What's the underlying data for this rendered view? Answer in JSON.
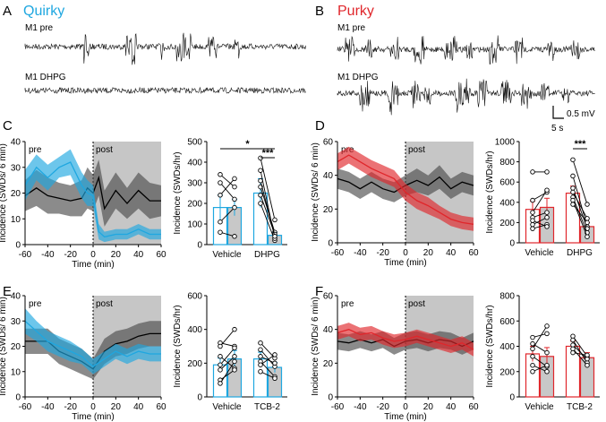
{
  "colors": {
    "quirky": "#1fa7e0",
    "purky": "#e0262b",
    "vehicle": "#1a1a1a",
    "grey_band": "#4d4d4d",
    "post_shade": "#c6c6c6",
    "bar_fill": "#c8c8c8",
    "trace": "#111111"
  },
  "panels": {
    "A": {
      "letter": "A",
      "strain": "Quirky",
      "trace_pre": "M1 pre",
      "trace_dhpg": "M1 DHPG"
    },
    "B": {
      "letter": "B",
      "strain": "Purky",
      "trace_pre": "M1 pre",
      "trace_dhpg": "M1 DHPG",
      "scale_mv": "0.5 mV",
      "scale_s": "5 s"
    }
  },
  "chart_data": [
    {
      "id": "C-time",
      "letter": "C",
      "type": "area",
      "color": "quirky",
      "pre_label": "pre",
      "post_label": "post",
      "xlabel": "Time (min)",
      "ylabel": "Incidence (SWDs/ 6 min)",
      "xlim": [
        -60,
        60
      ],
      "ylim": [
        0,
        40
      ],
      "xticks": [
        "-60",
        "-40",
        "-20",
        "0",
        "20",
        "40",
        "60"
      ],
      "yticks": [
        "0",
        "10",
        "20",
        "30",
        "40"
      ],
      "x": [
        -60,
        -50,
        -40,
        -30,
        -20,
        -10,
        -5,
        0,
        5,
        10,
        20,
        30,
        40,
        50,
        60
      ],
      "series": [
        {
          "name": "Vehicle",
          "mean": [
            19,
            22,
            19,
            18,
            17,
            18,
            22,
            20,
            26,
            14,
            21,
            16,
            21,
            17,
            17
          ],
          "sem": [
            6,
            7,
            7,
            6,
            6,
            7,
            8,
            7,
            7,
            7,
            7,
            6,
            7,
            7,
            6
          ]
        },
        {
          "name": "DHPG",
          "mean": [
            23,
            30,
            26,
            30,
            32,
            23,
            20,
            19,
            5,
            3,
            4,
            4,
            6,
            4,
            4
          ],
          "sem": [
            6,
            5,
            5,
            4,
            5,
            5,
            5,
            4,
            3,
            2,
            2,
            2,
            2,
            2,
            2
          ]
        }
      ]
    },
    {
      "id": "C-bar",
      "letter": "",
      "type": "bar",
      "color": "quirky",
      "ylabel": "Incidence (SWDs/hr)",
      "ylim": [
        0,
        500
      ],
      "yticks": [
        "0",
        "100",
        "200",
        "300",
        "400",
        "500"
      ],
      "groups": [
        "Vehicle",
        "DHPG"
      ],
      "pre": [
        180,
        250
      ],
      "post": [
        180,
        45
      ],
      "pre_err": [
        60,
        70
      ],
      "post_err": [
        40,
        15
      ],
      "pairs": [
        [
          [
            110,
            180
          ],
          [
            340,
            280
          ],
          [
            300,
            220
          ],
          [
            60,
            40
          ],
          [
            240,
            320
          ]
        ],
        [
          [
            420,
            120
          ],
          [
            280,
            60
          ],
          [
            200,
            20
          ],
          [
            360,
            30
          ],
          [
            240,
            50
          ],
          [
            310,
            40
          ]
        ]
      ],
      "sig": [
        {
          "from": 0,
          "to": 1,
          "text": "*"
        },
        {
          "from": 1,
          "to": 1,
          "text": "***"
        }
      ]
    },
    {
      "id": "D-time",
      "letter": "D",
      "type": "area",
      "color": "purky",
      "pre_label": "pre",
      "post_label": "post",
      "xlabel": "Time (min)",
      "ylabel": "Incidence (SWDs/ 6 min)",
      "xlim": [
        -60,
        60
      ],
      "ylim": [
        0,
        60
      ],
      "xticks": [
        "-60",
        "-40",
        "-20",
        "0",
        "20",
        "40",
        "60"
      ],
      "yticks": [
        "0",
        "20",
        "40",
        "60"
      ],
      "x": [
        -60,
        -50,
        -40,
        -30,
        -20,
        -10,
        0,
        10,
        20,
        30,
        40,
        50,
        60
      ],
      "series": [
        {
          "name": "Vehicle",
          "mean": [
            38,
            36,
            32,
            36,
            32,
            30,
            34,
            37,
            34,
            39,
            32,
            36,
            34
          ],
          "sem": [
            6,
            6,
            6,
            6,
            6,
            6,
            6,
            7,
            6,
            7,
            6,
            6,
            6
          ]
        },
        {
          "name": "DHPG",
          "mean": [
            48,
            52,
            48,
            44,
            41,
            38,
            30,
            25,
            22,
            18,
            14,
            12,
            11
          ],
          "sem": [
            5,
            5,
            5,
            5,
            5,
            5,
            5,
            5,
            5,
            4,
            4,
            4,
            4
          ]
        }
      ]
    },
    {
      "id": "D-bar",
      "letter": "",
      "type": "bar",
      "color": "purky",
      "ylabel": "Incidence (SWDs/hr)",
      "ylim": [
        0,
        1000
      ],
      "yticks": [
        "0",
        "200",
        "400",
        "600",
        "800",
        "1000"
      ],
      "groups": [
        "Vehicle",
        "DHPG"
      ],
      "pre": [
        330,
        490
      ],
      "post": [
        350,
        160
      ],
      "pre_err": [
        80,
        70
      ],
      "post_err": [
        90,
        40
      ],
      "pairs": [
        [
          [
            700,
            700
          ],
          [
            420,
            500
          ],
          [
            300,
            520
          ],
          [
            250,
            300
          ],
          [
            180,
            250
          ],
          [
            140,
            180
          ],
          [
            220,
            160
          ]
        ],
        [
          [
            820,
            380
          ],
          [
            660,
            160
          ],
          [
            540,
            140
          ],
          [
            500,
            240
          ],
          [
            450,
            100
          ],
          [
            420,
            60
          ],
          [
            380,
            200
          ]
        ]
      ],
      "sig": [
        {
          "from": 1,
          "to": 1,
          "text": "***"
        }
      ]
    },
    {
      "id": "E-time",
      "letter": "E",
      "type": "area",
      "color": "quirky",
      "pre_label": "pre",
      "post_label": "post",
      "xlabel": "Time (min)",
      "ylabel": "Incidence (SWDs/ 6 min)",
      "xlim": [
        -60,
        60
      ],
      "ylim": [
        0,
        40
      ],
      "xticks": [
        "-60",
        "-40",
        "-20",
        "0",
        "20",
        "40",
        "60"
      ],
      "yticks": [
        "0",
        "10",
        "20",
        "30",
        "40"
      ],
      "x": [
        -60,
        -50,
        -40,
        -30,
        -20,
        -10,
        0,
        10,
        20,
        30,
        40,
        50,
        60
      ],
      "series": [
        {
          "name": "Vehicle",
          "mean": [
            22,
            22,
            22,
            18,
            16,
            14,
            11,
            18,
            21,
            22,
            24,
            25,
            25
          ],
          "sem": [
            5,
            5,
            5,
            5,
            5,
            5,
            4,
            5,
            5,
            5,
            5,
            5,
            5
          ]
        },
        {
          "name": "TCB-2",
          "mean": [
            30,
            26,
            22,
            20,
            18,
            16,
            12,
            15,
            18,
            16,
            18,
            17,
            17
          ],
          "sem": [
            5,
            4,
            4,
            4,
            4,
            3,
            3,
            3,
            3,
            3,
            3,
            3,
            3
          ]
        }
      ]
    },
    {
      "id": "E-bar",
      "letter": "",
      "type": "bar",
      "color": "quirky",
      "ylabel": "Incidence (SWDs/hr)",
      "ylim": [
        0,
        600
      ],
      "yticks": [
        "0",
        "200",
        "400",
        "600"
      ],
      "groups": [
        "Vehicle",
        "TCB-2"
      ],
      "pre": [
        190,
        225
      ],
      "post": [
        225,
        175
      ],
      "pre_err": [
        40,
        40
      ],
      "post_err": [
        50,
        30
      ],
      "pairs": [
        [
          [
            320,
            300
          ],
          [
            300,
            400
          ],
          [
            240,
            170
          ],
          [
            190,
            290
          ],
          [
            160,
            240
          ],
          [
            100,
            160
          ],
          [
            80,
            210
          ]
        ],
        [
          [
            320,
            230
          ],
          [
            280,
            180
          ],
          [
            240,
            200
          ],
          [
            210,
            120
          ],
          [
            190,
            250
          ],
          [
            150,
            110
          ]
        ]
      ],
      "sig": []
    },
    {
      "id": "F-time",
      "letter": "F",
      "type": "area",
      "color": "purky",
      "pre_label": "pre",
      "post_label": "post",
      "xlabel": "Time (min)",
      "ylabel": "Incidence (SWDs/ 6 min)",
      "xlim": [
        -60,
        60
      ],
      "ylim": [
        0,
        60
      ],
      "xticks": [
        "-60",
        "-40",
        "-20",
        "0",
        "20",
        "40",
        "60"
      ],
      "yticks": [
        "0",
        "20",
        "40",
        "60"
      ],
      "x": [
        -60,
        -50,
        -40,
        -30,
        -20,
        -10,
        0,
        10,
        20,
        30,
        40,
        50,
        60
      ],
      "series": [
        {
          "name": "Vehicle",
          "mean": [
            33,
            32,
            34,
            32,
            34,
            30,
            33,
            34,
            32,
            34,
            33,
            30,
            33
          ],
          "sem": [
            5,
            5,
            5,
            5,
            5,
            5,
            5,
            5,
            5,
            5,
            5,
            5,
            5
          ]
        },
        {
          "name": "TCB-2",
          "mean": [
            38,
            40,
            37,
            38,
            35,
            33,
            34,
            36,
            34,
            32,
            30,
            32,
            28
          ],
          "sem": [
            4,
            4,
            4,
            4,
            4,
            4,
            4,
            4,
            4,
            4,
            4,
            4,
            4
          ]
        }
      ]
    },
    {
      "id": "F-bar",
      "letter": "",
      "type": "bar",
      "color": "purky",
      "ylabel": "Incidence (SWDs/hr)",
      "ylim": [
        0,
        800
      ],
      "yticks": [
        "0",
        "200",
        "400",
        "600",
        "800"
      ],
      "groups": [
        "Vehicle",
        "TCB-2"
      ],
      "pre": [
        340,
        400
      ],
      "post": [
        320,
        310
      ],
      "pre_err": [
        60,
        40
      ],
      "post_err": [
        70,
        40
      ],
      "pairs": [
        [
          [
            470,
            500
          ],
          [
            420,
            350
          ],
          [
            380,
            560
          ],
          [
            320,
            240
          ],
          [
            250,
            200
          ],
          [
            200,
            250
          ]
        ],
        [
          [
            480,
            320
          ],
          [
            450,
            270
          ],
          [
            410,
            300
          ],
          [
            380,
            250
          ],
          [
            350,
            330
          ]
        ]
      ],
      "sig": []
    }
  ]
}
